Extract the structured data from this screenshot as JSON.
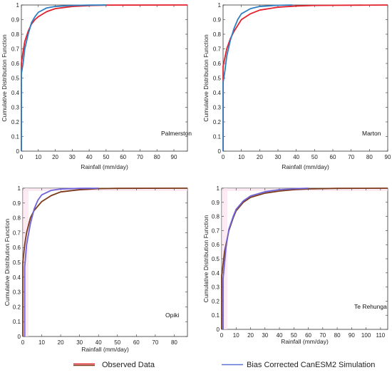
{
  "chart_data": [
    {
      "type": "line",
      "station": "Palmerston",
      "xlabel": "Rainfall (mm/day)",
      "ylabel": "Cumulative Distribution Function",
      "xlim": [
        0,
        98
      ],
      "ylim": [
        0,
        1
      ],
      "xticks": [
        0,
        10,
        20,
        30,
        40,
        50,
        60,
        70,
        80,
        90
      ],
      "yticks": [
        0,
        0.1,
        0.2,
        0.3,
        0.4,
        0.5,
        0.6,
        0.7,
        0.8,
        0.9,
        1
      ],
      "series": [
        {
          "name": "Observed Data",
          "color": "#e3202b",
          "x": [
            0,
            0,
            1,
            2,
            4,
            6,
            8,
            10,
            15,
            20,
            30,
            40,
            50,
            98
          ],
          "y": [
            0,
            0.6,
            0.68,
            0.75,
            0.82,
            0.87,
            0.9,
            0.92,
            0.955,
            0.975,
            0.99,
            0.996,
            0.999,
            1
          ]
        },
        {
          "name": "Bias Corrected CanESM2 Simulation",
          "color": "#2f7fc0",
          "x": [
            0,
            0,
            1,
            2,
            4,
            6,
            8,
            10,
            15,
            20,
            30,
            40,
            50
          ],
          "y": [
            0,
            0.53,
            0.6,
            0.7,
            0.8,
            0.88,
            0.92,
            0.95,
            0.98,
            0.99,
            0.997,
            0.999,
            1
          ]
        }
      ]
    },
    {
      "type": "line",
      "station": "Marton",
      "xlabel": "Rainfall (mm/day)",
      "ylabel": "Cumulative Distribution Function",
      "xlim": [
        0,
        90
      ],
      "ylim": [
        0,
        1
      ],
      "xticks": [
        0,
        10,
        20,
        30,
        40,
        50,
        60,
        70,
        80,
        90
      ],
      "yticks": [
        0,
        0.1,
        0.2,
        0.3,
        0.4,
        0.5,
        0.6,
        0.7,
        0.8,
        0.9,
        1
      ],
      "series": [
        {
          "name": "Observed Data",
          "color": "#e3202b",
          "x": [
            0,
            0,
            1,
            2,
            4,
            6,
            8,
            10,
            15,
            20,
            30,
            40,
            50,
            90
          ],
          "y": [
            0,
            0.58,
            0.64,
            0.7,
            0.77,
            0.82,
            0.86,
            0.9,
            0.94,
            0.965,
            0.985,
            0.993,
            0.997,
            1
          ]
        },
        {
          "name": "Bias Corrected CanESM2 Simulation",
          "color": "#2f7fc0",
          "x": [
            0,
            0,
            1,
            2,
            4,
            6,
            8,
            10,
            15,
            20,
            30,
            38
          ],
          "y": [
            0,
            0.47,
            0.55,
            0.65,
            0.76,
            0.84,
            0.9,
            0.94,
            0.975,
            0.99,
            0.998,
            1
          ]
        }
      ]
    },
    {
      "type": "line",
      "station": "Opiki",
      "xlabel": "Rainfall (mm/day)",
      "ylabel": "Cumulative Distribution Function",
      "xlim": [
        0,
        87
      ],
      "ylim": [
        0,
        1
      ],
      "xticks": [
        0,
        10,
        20,
        30,
        40,
        50,
        60,
        70,
        80
      ],
      "yticks": [
        0,
        0.1,
        0.2,
        0.3,
        0.4,
        0.5,
        0.6,
        0.7,
        0.8,
        0.9,
        1
      ],
      "series": [
        {
          "name": "Observed Data",
          "color": "#7a3a1a",
          "x": [
            0,
            0,
            1,
            2,
            4,
            6,
            8,
            10,
            15,
            20,
            30,
            40,
            50,
            87
          ],
          "y": [
            0,
            0.5,
            0.62,
            0.7,
            0.8,
            0.85,
            0.88,
            0.91,
            0.95,
            0.975,
            0.99,
            0.997,
            0.999,
            1
          ]
        },
        {
          "name": "Bias Corrected CanESM2 Simulation",
          "color": "#6f63d9",
          "x": [
            1,
            1,
            2,
            4,
            6,
            8,
            10,
            15,
            20,
            30,
            40
          ],
          "y": [
            0,
            0.47,
            0.62,
            0.76,
            0.86,
            0.92,
            0.955,
            0.985,
            0.995,
            0.999,
            1
          ]
        }
      ]
    },
    {
      "type": "line",
      "station": "Te Rehunga",
      "xlabel": "Rainfall (mm/day)",
      "ylabel": "Cumulative Distribution Function",
      "xlim": [
        0,
        115
      ],
      "ylim": [
        0,
        1
      ],
      "xticks": [
        0,
        10,
        20,
        30,
        40,
        50,
        60,
        70,
        80,
        90,
        100,
        110
      ],
      "yticks": [
        0,
        0.1,
        0.2,
        0.3,
        0.4,
        0.5,
        0.6,
        0.7,
        0.8,
        0.9,
        1
      ],
      "series": [
        {
          "name": "Observed Data",
          "color": "#7a3a1a",
          "x": [
            0,
            0,
            2,
            5,
            8,
            10,
            15,
            20,
            30,
            40,
            50,
            60,
            80,
            115
          ],
          "y": [
            0,
            0.38,
            0.55,
            0.7,
            0.79,
            0.84,
            0.9,
            0.935,
            0.965,
            0.98,
            0.99,
            0.995,
            0.999,
            1
          ]
        },
        {
          "name": "Bias Corrected CanESM2 Simulation",
          "color": "#6f63d9",
          "x": [
            1,
            1,
            3,
            5,
            8,
            10,
            15,
            20,
            30,
            40,
            50,
            60
          ],
          "y": [
            0,
            0.36,
            0.58,
            0.71,
            0.8,
            0.85,
            0.91,
            0.945,
            0.975,
            0.99,
            0.997,
            1
          ]
        }
      ]
    }
  ],
  "legend": {
    "observed_label": "Observed Data",
    "simulation_label": "Bias Corrected CanESM2 Simulation",
    "observed_colors": [
      "#e3202b",
      "#7a3a1a"
    ],
    "simulation_color": "#5b73d8"
  }
}
